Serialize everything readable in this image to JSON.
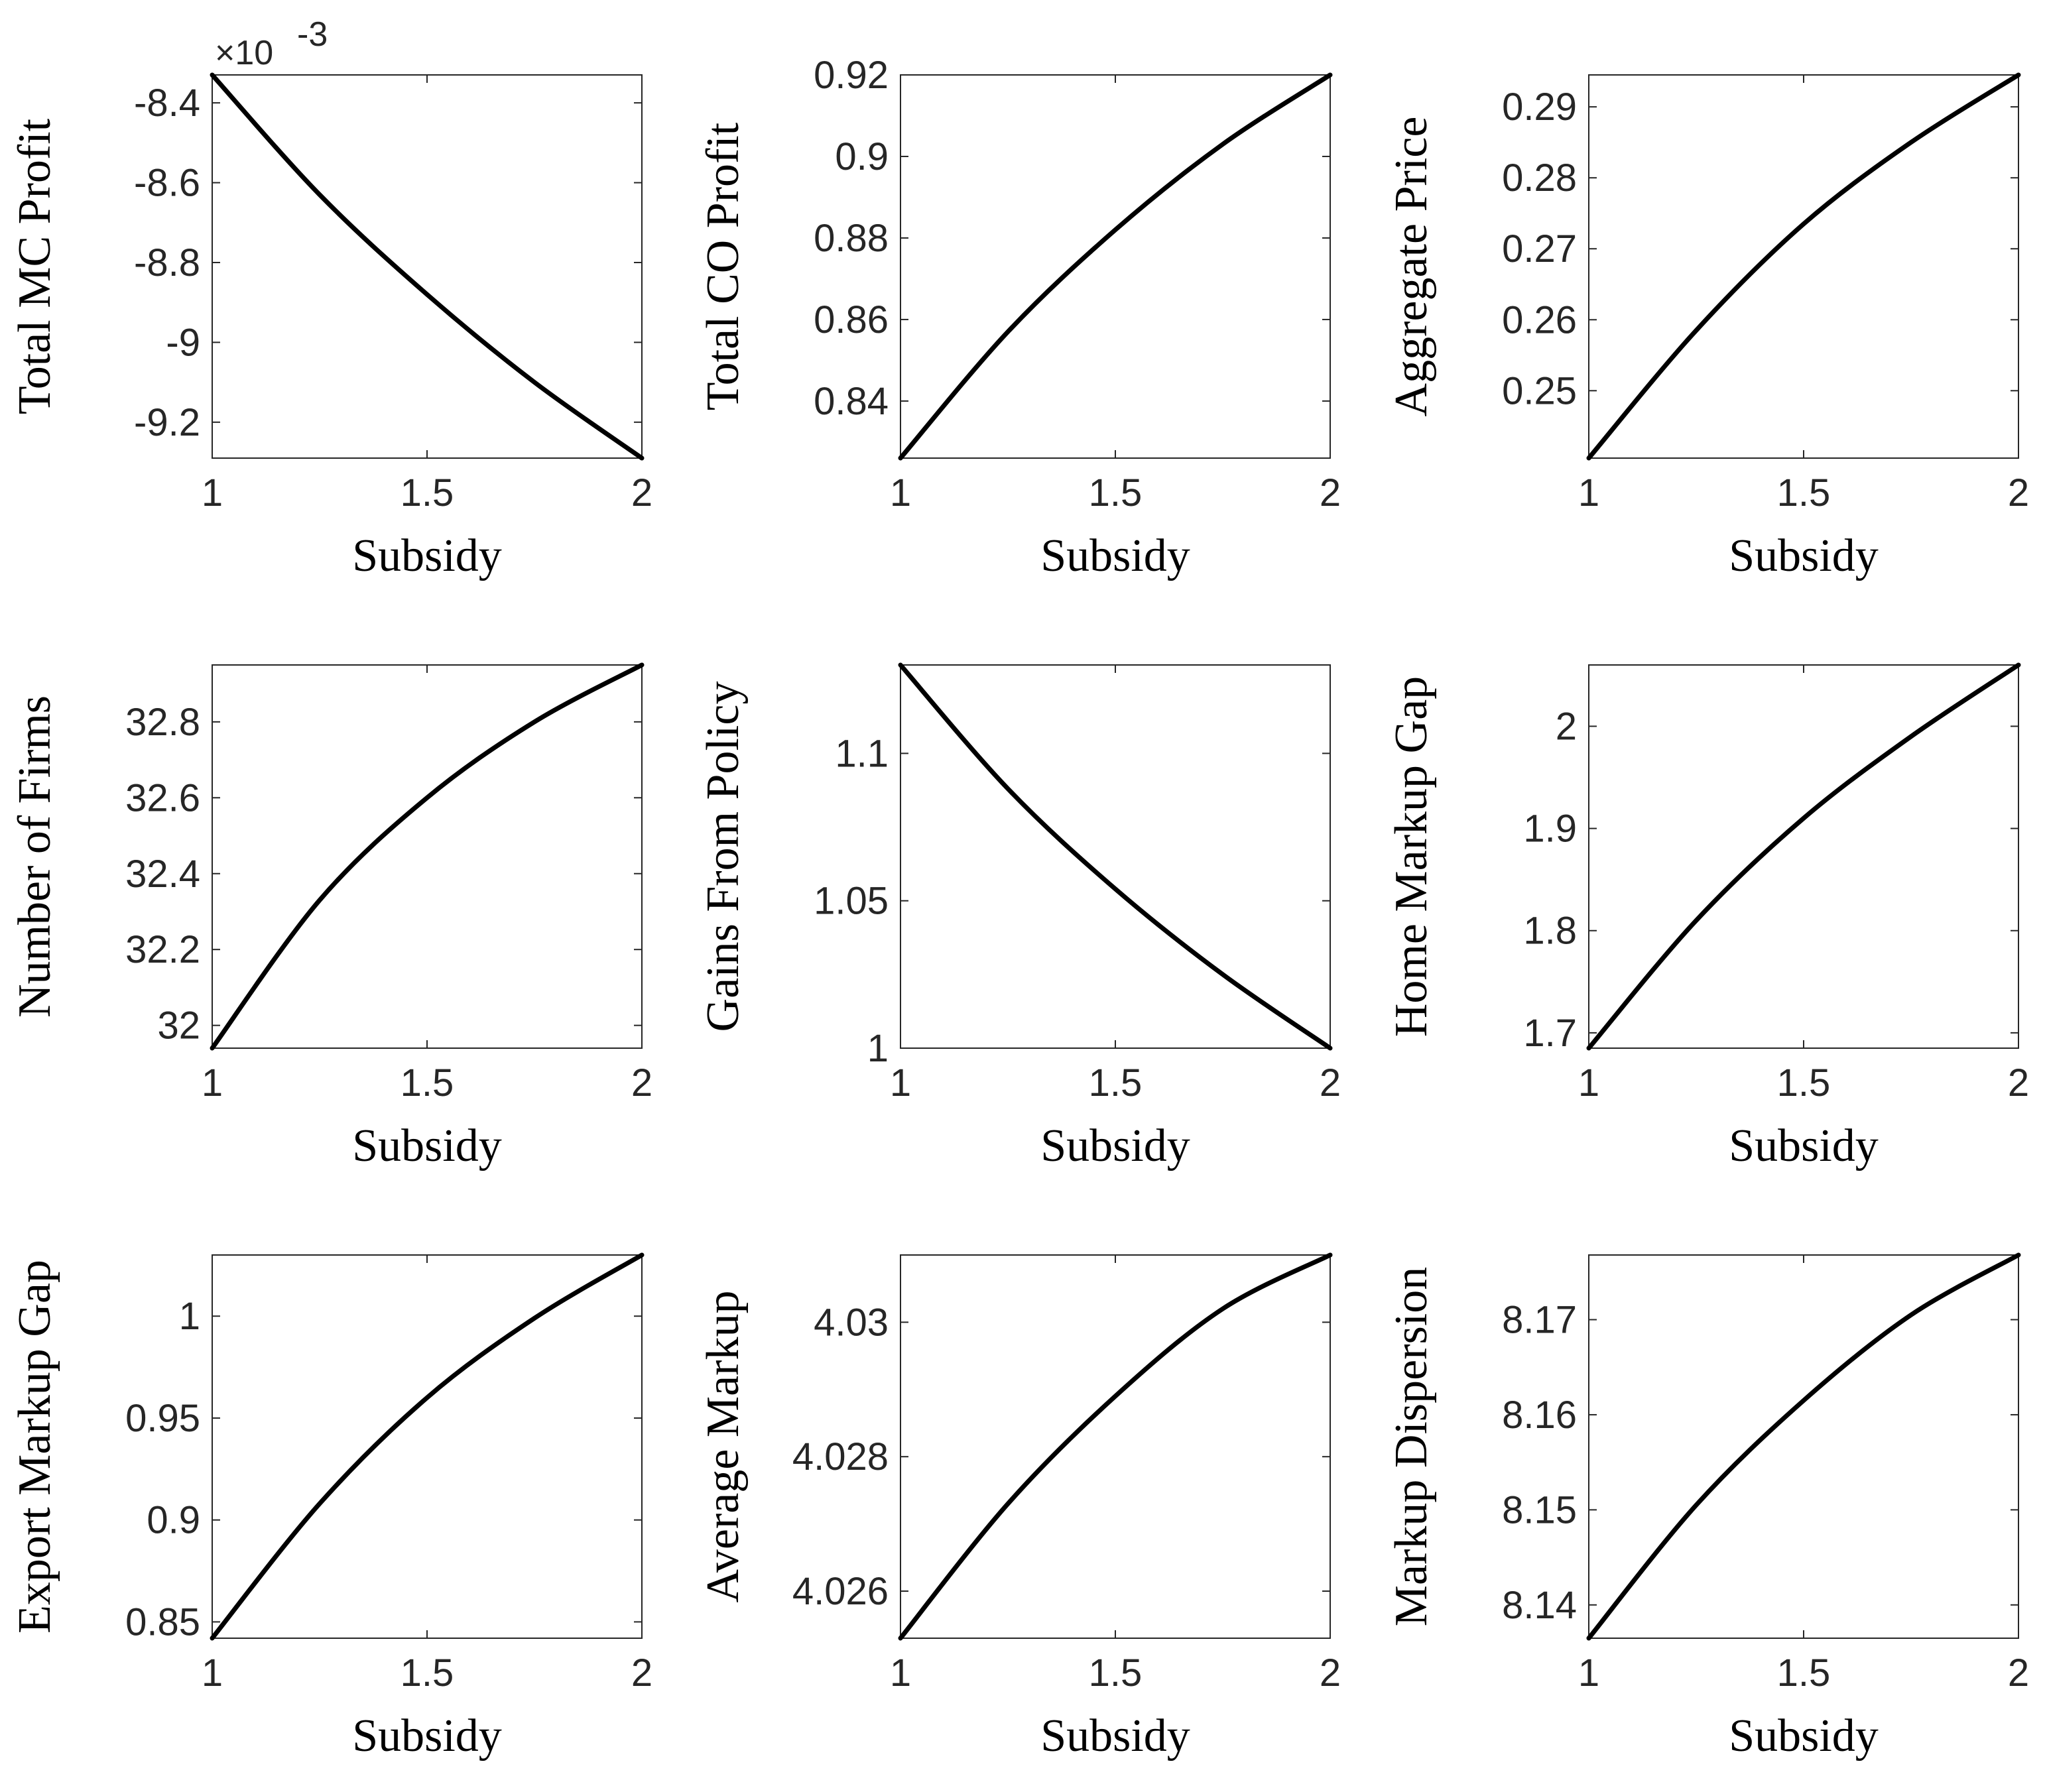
{
  "chart_data": [
    {
      "type": "line",
      "ylabel": "Total MC Profit",
      "xlabel": "Subsidy",
      "x": [
        1,
        1.25,
        1.5,
        1.75,
        2
      ],
      "y": [
        -8.33,
        -8.63,
        -8.88,
        -9.1,
        -9.29
      ],
      "xlim": [
        1,
        2
      ],
      "ylim": [
        -9.29,
        -8.33
      ],
      "xticks": [
        "1",
        "1.5",
        "2"
      ],
      "yticks": [
        -8.4,
        -8.6,
        -8.8,
        -9,
        -9.2
      ],
      "yticklabels": [
        "-8.4",
        "-8.6",
        "-8.8",
        "-9",
        "-9.2"
      ],
      "multiplier": "×10",
      "multiplier_exp": "-3"
    },
    {
      "type": "line",
      "ylabel": "Total CO Profit",
      "xlabel": "Subsidy",
      "x": [
        1,
        1.25,
        1.5,
        1.75,
        2
      ],
      "y": [
        0.826,
        0.857,
        0.882,
        0.903,
        0.92
      ],
      "xlim": [
        1,
        2
      ],
      "ylim": [
        0.826,
        0.92
      ],
      "xticks": [
        "1",
        "1.5",
        "2"
      ],
      "yticks": [
        0.92,
        0.9,
        0.88,
        0.86,
        0.84
      ],
      "yticklabels": [
        "0.92",
        "0.9",
        "0.88",
        "0.86",
        "0.84"
      ]
    },
    {
      "type": "line",
      "ylabel": "Aggregate Price",
      "xlabel": "Subsidy",
      "x": [
        1,
        1.25,
        1.5,
        1.75,
        2
      ],
      "y": [
        0.2405,
        0.2585,
        0.2735,
        0.285,
        0.2945
      ],
      "xlim": [
        1,
        2
      ],
      "ylim": [
        0.2405,
        0.2945
      ],
      "xticks": [
        "1",
        "1.5",
        "2"
      ],
      "yticks": [
        0.29,
        0.28,
        0.27,
        0.26,
        0.25
      ],
      "yticklabels": [
        "0.29",
        "0.28",
        "0.27",
        "0.26",
        "0.25"
      ]
    },
    {
      "type": "line",
      "ylabel": "Number of Firms",
      "xlabel": "Subsidy",
      "x": [
        1,
        1.25,
        1.5,
        1.75,
        2
      ],
      "y": [
        31.94,
        32.33,
        32.6,
        32.8,
        32.95
      ],
      "xlim": [
        1,
        2
      ],
      "ylim": [
        31.94,
        32.95
      ],
      "xticks": [
        "1",
        "1.5",
        "2"
      ],
      "yticks": [
        32.8,
        32.6,
        32.4,
        32.2,
        32
      ],
      "yticklabels": [
        "32.8",
        "32.6",
        "32.4",
        "32.2",
        "32"
      ]
    },
    {
      "type": "line",
      "ylabel": "Gains From Policy",
      "xlabel": "Subsidy",
      "x": [
        1,
        1.25,
        1.5,
        1.75,
        2
      ],
      "y": [
        1.13,
        1.088,
        1.054,
        1.025,
        1.0
      ],
      "xlim": [
        1,
        2
      ],
      "ylim": [
        1.0,
        1.13
      ],
      "xticks": [
        "1",
        "1.5",
        "2"
      ],
      "yticks": [
        1.1,
        1.05,
        1
      ],
      "yticklabels": [
        "1.1",
        "1.05",
        "1"
      ]
    },
    {
      "type": "line",
      "ylabel": "Home Markup Gap",
      "xlabel": "Subsidy",
      "x": [
        1,
        1.25,
        1.5,
        1.75,
        2
      ],
      "y": [
        1.685,
        1.81,
        1.91,
        1.99,
        2.06
      ],
      "xlim": [
        1,
        2
      ],
      "ylim": [
        1.685,
        2.06
      ],
      "xticks": [
        "1",
        "1.5",
        "2"
      ],
      "yticks": [
        2,
        1.9,
        1.8,
        1.7
      ],
      "yticklabels": [
        "2",
        "1.9",
        "1.8",
        "1.7"
      ]
    },
    {
      "type": "line",
      "ylabel": "Export Markup Gap",
      "xlabel": "Subsidy",
      "x": [
        1,
        1.25,
        1.5,
        1.75,
        2
      ],
      "y": [
        0.842,
        0.908,
        0.96,
        0.999,
        1.03
      ],
      "xlim": [
        1,
        2
      ],
      "ylim": [
        0.842,
        1.03
      ],
      "xticks": [
        "1",
        "1.5",
        "2"
      ],
      "yticks": [
        1,
        0.95,
        0.9,
        0.85
      ],
      "yticklabels": [
        "1",
        "0.95",
        "0.9",
        "0.85"
      ]
    },
    {
      "type": "line",
      "ylabel": "Average Markup",
      "xlabel": "Subsidy",
      "x": [
        1,
        1.25,
        1.5,
        1.75,
        2
      ],
      "y": [
        4.0253,
        4.0273,
        4.0289,
        4.0302,
        4.031
      ],
      "xlim": [
        1,
        2
      ],
      "ylim": [
        4.0253,
        4.031
      ],
      "xticks": [
        "1",
        "1.5",
        "2"
      ],
      "yticks": [
        4.03,
        4.028,
        4.026
      ],
      "yticklabels": [
        "4.03",
        "4.028",
        "4.026"
      ]
    },
    {
      "type": "line",
      "ylabel": "Markup Dispersion",
      "xlabel": "Subsidy",
      "x": [
        1,
        1.25,
        1.5,
        1.75,
        2
      ],
      "y": [
        8.1365,
        8.1505,
        8.1615,
        8.1705,
        8.1768
      ],
      "xlim": [
        1,
        2
      ],
      "ylim": [
        8.1365,
        8.1768
      ],
      "xticks": [
        "1",
        "1.5",
        "2"
      ],
      "yticks": [
        8.17,
        8.16,
        8.15,
        8.14
      ],
      "yticklabels": [
        "8.17",
        "8.16",
        "8.15",
        "8.14"
      ]
    }
  ]
}
